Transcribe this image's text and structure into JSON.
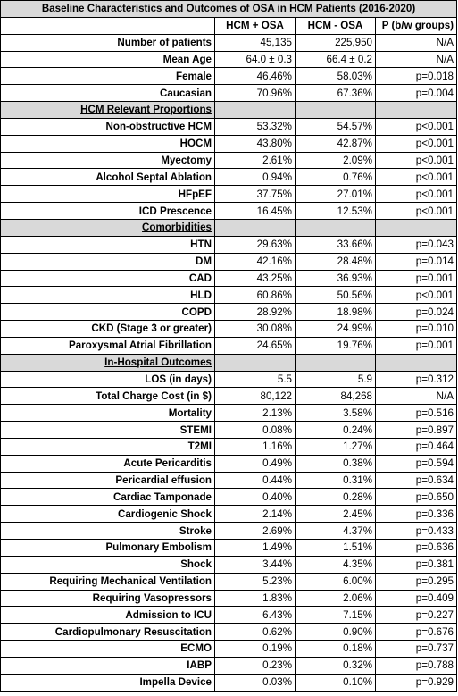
{
  "title": "Baseline Characteristics and Outcomes of OSA in HCM Patients (2016-2020)",
  "columns": [
    "",
    "HCM + OSA",
    "HCM - OSA",
    "P (b/w groups)"
  ],
  "sections": [
    {
      "label": "",
      "rows": [
        {
          "label": "Number of patients",
          "osa": "45,135",
          "no_osa": "225,950",
          "p": "N/A"
        },
        {
          "label": "Mean Age",
          "osa": "64.0 ± 0.3",
          "no_osa": "66.4 ± 0.2",
          "p": "N/A"
        },
        {
          "label": "Female",
          "osa": "46.46%",
          "no_osa": "58.03%",
          "p": "p=0.018"
        },
        {
          "label": "Caucasian",
          "osa": "70.96%",
          "no_osa": "67.36%",
          "p": "p=0.004"
        }
      ]
    },
    {
      "label": "HCM Relevant Proportions",
      "rows": [
        {
          "label": "Non-obstructive HCM",
          "osa": "53.32%",
          "no_osa": "54.57%",
          "p": "p<0.001"
        },
        {
          "label": "HOCM",
          "osa": "43.80%",
          "no_osa": "42.87%",
          "p": "p<0.001"
        },
        {
          "label": "Myectomy",
          "osa": "2.61%",
          "no_osa": "2.09%",
          "p": "p<0.001"
        },
        {
          "label": "Alcohol Septal Ablation",
          "osa": "0.94%",
          "no_osa": "0.76%",
          "p": "p<0.001"
        },
        {
          "label": "HFpEF",
          "osa": "37.75%",
          "no_osa": "27.01%",
          "p": "p<0.001"
        },
        {
          "label": "ICD Prescence",
          "osa": "16.45%",
          "no_osa": "12.53%",
          "p": "p<0.001"
        }
      ]
    },
    {
      "label": "Comorbidities",
      "rows": [
        {
          "label": "HTN",
          "osa": "29.63%",
          "no_osa": "33.66%",
          "p": "p=0.043"
        },
        {
          "label": "DM",
          "osa": "42.16%",
          "no_osa": "28.48%",
          "p": "p=0.014"
        },
        {
          "label": "CAD",
          "osa": "43.25%",
          "no_osa": "36.93%",
          "p": "p=0.001"
        },
        {
          "label": "HLD",
          "osa": "60.86%",
          "no_osa": "50.56%",
          "p": "p<0.001"
        },
        {
          "label": "COPD",
          "osa": "28.92%",
          "no_osa": "18.98%",
          "p": "p=0.024"
        },
        {
          "label": "CKD (Stage 3 or greater)",
          "osa": "30.08%",
          "no_osa": "24.99%",
          "p": "p=0.010"
        },
        {
          "label": "Paroxysmal Atrial Fibrillation",
          "osa": "24.65%",
          "no_osa": "19.76%",
          "p": "p=0.001"
        }
      ]
    },
    {
      "label": "In-Hospital Outcomes",
      "rows": [
        {
          "label": "LOS (in days)",
          "osa": "5.5",
          "no_osa": "5.9",
          "p": "p=0.312"
        },
        {
          "label": "Total Charge Cost (in $)",
          "osa": "80,122",
          "no_osa": "84,268",
          "p": "N/A"
        },
        {
          "label": "Mortality",
          "osa": "2.13%",
          "no_osa": "3.58%",
          "p": "p=0.516"
        },
        {
          "label": "STEMI",
          "osa": "0.08%",
          "no_osa": "0.24%",
          "p": "p=0.897"
        },
        {
          "label": "T2MI",
          "osa": "1.16%",
          "no_osa": "1.27%",
          "p": "p=0.464"
        },
        {
          "label": "Acute Pericarditis",
          "osa": "0.49%",
          "no_osa": "0.38%",
          "p": "p=0.594"
        },
        {
          "label": "Pericardial effusion",
          "osa": "0.44%",
          "no_osa": "0.31%",
          "p": "p=0.634"
        },
        {
          "label": "Cardiac Tamponade",
          "osa": "0.40%",
          "no_osa": "0.28%",
          "p": "p=0.650"
        },
        {
          "label": "Cardiogenic Shock",
          "osa": "2.14%",
          "no_osa": "2.45%",
          "p": "p=0.336"
        },
        {
          "label": "Stroke",
          "osa": "2.69%",
          "no_osa": "4.37%",
          "p": "p=0.433"
        },
        {
          "label": "Pulmonary Embolism",
          "osa": "1.49%",
          "no_osa": "1.51%",
          "p": "p=0.636"
        },
        {
          "label": "Shock",
          "osa": "3.44%",
          "no_osa": "4.35%",
          "p": "p=0.381"
        },
        {
          "label": "Requiring Mechanical Ventilation",
          "osa": "5.23%",
          "no_osa": "6.00%",
          "p": "p=0.295"
        },
        {
          "label": "Requiring Vasopressors",
          "osa": "1.83%",
          "no_osa": "2.06%",
          "p": "p=0.409"
        },
        {
          "label": "Admission to ICU",
          "osa": "6.43%",
          "no_osa": "7.15%",
          "p": "p=0.227"
        },
        {
          "label": "Cardiopulmonary Resuscitation",
          "osa": "0.62%",
          "no_osa": "0.90%",
          "p": "p=0.676"
        },
        {
          "label": "ECMO",
          "osa": "0.19%",
          "no_osa": "0.18%",
          "p": "p=0.737"
        },
        {
          "label": "IABP",
          "osa": "0.23%",
          "no_osa": "0.32%",
          "p": "p=0.788"
        },
        {
          "label": "Impella Device",
          "osa": "0.03%",
          "no_osa": "0.10%",
          "p": "p=0.929"
        }
      ]
    }
  ],
  "colors": {
    "header_fill": "#d9d9d9",
    "border": "#000000"
  }
}
